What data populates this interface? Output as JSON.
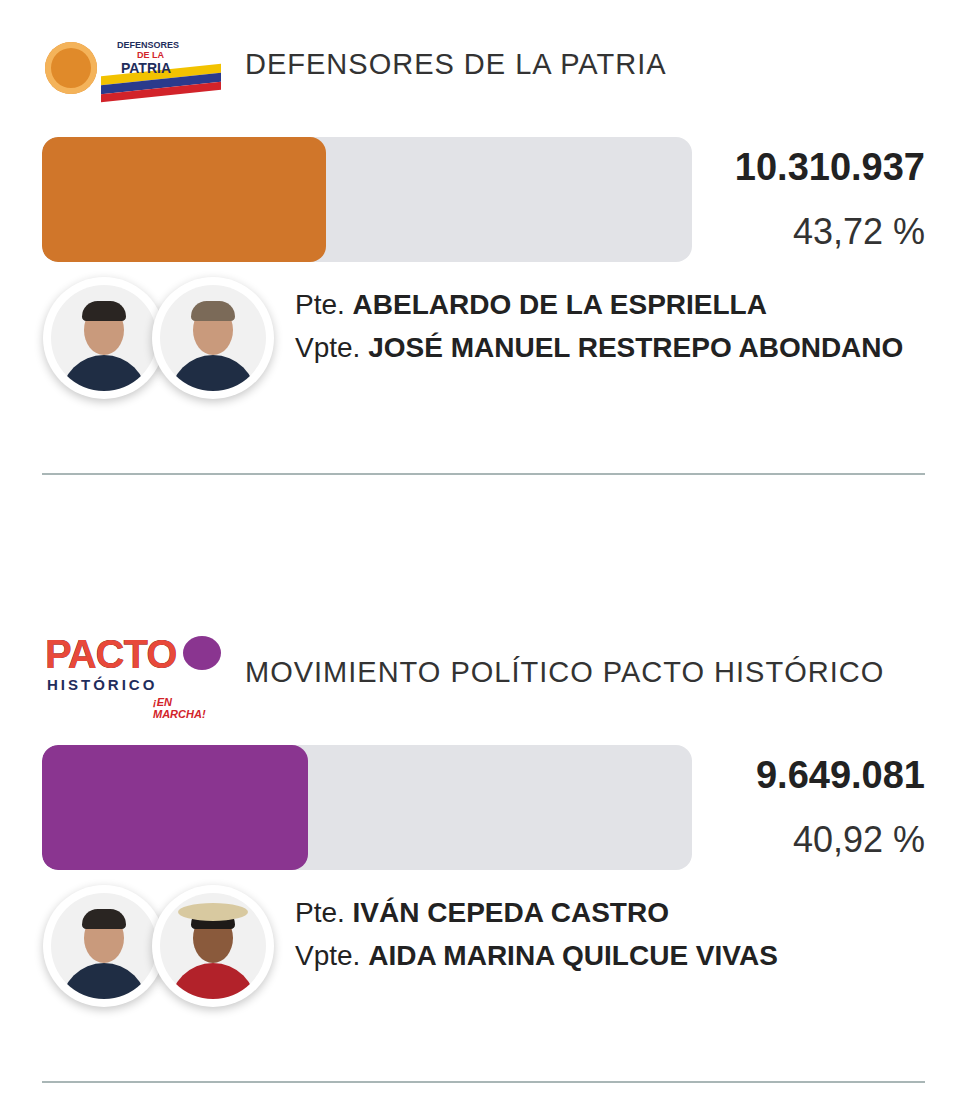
{
  "chart_data": {
    "type": "bar",
    "orientation": "horizontal",
    "categories": [
      "DEFENSORES DE LA PATRIA",
      "MOVIMIENTO POLÍTICO PACTO HISTÓRICO"
    ],
    "values": [
      43.72,
      40.92
    ],
    "value_labels": [
      "43,72 %",
      "40,92 %"
    ],
    "colors": [
      "#d0762a",
      "#8a3590"
    ],
    "xlim": [
      0,
      100
    ],
    "tick_labels": false,
    "data_labels": true,
    "votes": [
      10310937,
      9649081
    ],
    "vote_labels": [
      "10.310.937",
      "9.649.081"
    ],
    "president_label": "Pte.",
    "vice_label": "Vpte.",
    "presidents": [
      "ABELARDO DE LA ESPRIELLA",
      "IVÁN CEPEDA CASTRO"
    ],
    "vice_presidents": [
      "JOSÉ MANUEL RESTREPO ABONDANO",
      "AIDA MARINA QUILCUE VIVAS"
    ],
    "logo_texts": [
      [
        "DEFENSORES",
        "DE LA",
        "PATRIA"
      ],
      [
        "PACTO",
        "HISTÓRICO",
        "¡EN MARCHA!"
      ]
    ]
  }
}
